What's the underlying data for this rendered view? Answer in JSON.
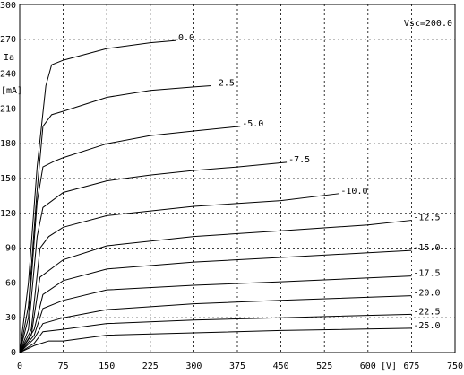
{
  "chart_data": {
    "type": "line",
    "y_label": "Ia",
    "y_unit": "[mA]",
    "x_unit": "[V]",
    "annotation": "Vsc=200.0",
    "xlim": [
      0,
      750
    ],
    "xticks": [
      0,
      75,
      150,
      225,
      300,
      375,
      450,
      525,
      600,
      675,
      750
    ],
    "ylim": [
      0,
      300
    ],
    "yticks": [
      0,
      30,
      60,
      90,
      120,
      150,
      180,
      210,
      240,
      270,
      300
    ],
    "grid": true,
    "series": [
      {
        "name": "0.0",
        "color": "#000000",
        "x": [
          0,
          15,
          30,
          45,
          55,
          75,
          150,
          225,
          270
        ],
        "values": [
          0,
          60,
          160,
          230,
          248,
          252,
          262,
          267,
          269
        ]
      },
      {
        "name": "-2.5",
        "color": "#000000",
        "x": [
          0,
          15,
          30,
          40,
          55,
          75,
          150,
          225,
          300,
          330
        ],
        "values": [
          0,
          40,
          140,
          195,
          205,
          208,
          220,
          226,
          229,
          230
        ]
      },
      {
        "name": "-5.0",
        "color": "#000000",
        "x": [
          0,
          15,
          30,
          40,
          60,
          75,
          150,
          225,
          300,
          380
        ],
        "values": [
          0,
          30,
          130,
          160,
          165,
          168,
          180,
          187,
          191,
          195
        ]
      },
      {
        "name": "-7.5",
        "color": "#000000",
        "x": [
          0,
          15,
          30,
          40,
          75,
          150,
          225,
          300,
          375,
          460
        ],
        "values": [
          0,
          20,
          100,
          125,
          138,
          148,
          153,
          157,
          160,
          164
        ]
      },
      {
        "name": "-10.0",
        "color": "#000000",
        "x": [
          0,
          20,
          35,
          50,
          75,
          150,
          300,
          450,
          550
        ],
        "values": [
          0,
          20,
          90,
          100,
          108,
          118,
          126,
          131,
          137
        ]
      },
      {
        "name": "-12.5",
        "color": "#000000",
        "x": [
          0,
          20,
          35,
          75,
          150,
          300,
          450,
          600,
          675
        ],
        "values": [
          0,
          15,
          65,
          80,
          92,
          100,
          105,
          110,
          114
        ]
      },
      {
        "name": "-15.0",
        "color": "#000000",
        "x": [
          0,
          25,
          40,
          75,
          150,
          300,
          450,
          675
        ],
        "values": [
          0,
          20,
          50,
          62,
          72,
          78,
          82,
          88
        ]
      },
      {
        "name": "-17.5",
        "color": "#000000",
        "x": [
          0,
          25,
          40,
          75,
          150,
          300,
          450,
          675
        ],
        "values": [
          0,
          15,
          38,
          45,
          54,
          58,
          61,
          66
        ]
      },
      {
        "name": "-20.0",
        "color": "#000000",
        "x": [
          0,
          25,
          40,
          75,
          150,
          300,
          450,
          675
        ],
        "values": [
          0,
          12,
          25,
          30,
          37,
          42,
          45,
          49
        ]
      },
      {
        "name": "-22.5",
        "color": "#000000",
        "x": [
          0,
          25,
          40,
          75,
          150,
          300,
          450,
          675
        ],
        "values": [
          0,
          8,
          18,
          20,
          25,
          28,
          30,
          33
        ]
      },
      {
        "name": "-25.0",
        "color": "#000000",
        "x": [
          0,
          25,
          50,
          75,
          150,
          300,
          450,
          675
        ],
        "values": [
          0,
          6,
          10,
          10,
          15,
          17,
          19,
          21
        ]
      }
    ]
  }
}
